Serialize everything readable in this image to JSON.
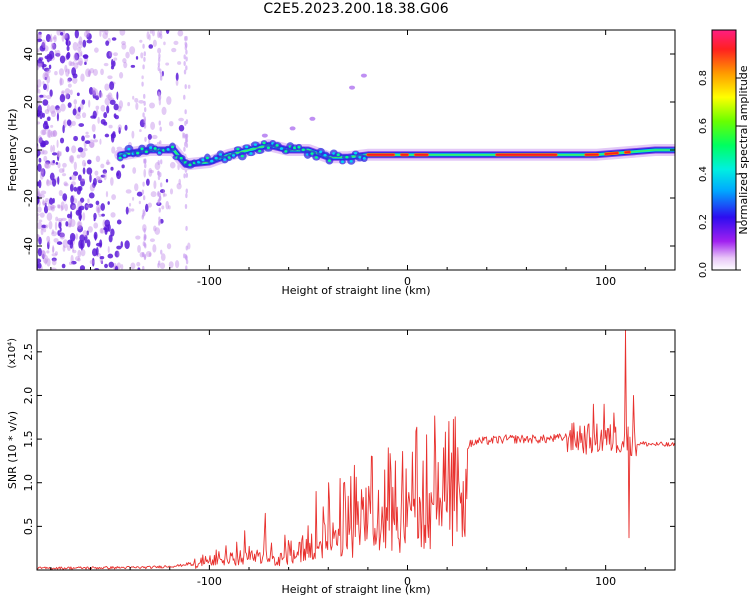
{
  "title": "C2E5.2023.200.18.38.G06",
  "chart_data": [
    {
      "type": "heatmap",
      "name": "spectrogram",
      "xlabel": "Height of straight line (km)",
      "ylabel": "Frequency (Hz)",
      "xlim": [
        -187,
        135
      ],
      "ylim": [
        -50,
        50
      ],
      "xticks": [
        {
          "v": -100,
          "label": "-100"
        },
        {
          "v": 0,
          "label": "0"
        },
        {
          "v": 100,
          "label": "100"
        }
      ],
      "yticks": [
        {
          "v": -40,
          "label": "-40"
        },
        {
          "v": -20,
          "label": "-20"
        },
        {
          "v": 0,
          "label": "0"
        },
        {
          "v": 20,
          "label": "20"
        },
        {
          "v": 40,
          "label": "40"
        }
      ],
      "colorbar": {
        "label": "Normalized spectral amplitude",
        "range": [
          0,
          1
        ],
        "ticks": [
          {
            "v": 0.0,
            "label": "0.0"
          },
          {
            "v": 0.2,
            "label": "0.2"
          },
          {
            "v": 0.4,
            "label": "0.4"
          },
          {
            "v": 0.6,
            "label": "0.6"
          },
          {
            "v": 0.8,
            "label": "0.8"
          }
        ]
      },
      "ridge": {
        "points": [
          [
            -145,
            -2
          ],
          [
            -130,
            0
          ],
          [
            -118,
            0
          ],
          [
            -112,
            -6
          ],
          [
            -100,
            -5
          ],
          [
            -90,
            -2
          ],
          [
            -80,
            0
          ],
          [
            -70,
            2
          ],
          [
            -60,
            0
          ],
          [
            -50,
            0
          ],
          [
            -40,
            -3
          ],
          [
            -30,
            -3
          ],
          [
            -20,
            -2
          ],
          [
            -10,
            -2
          ],
          [
            0,
            -2
          ],
          [
            20,
            -2
          ],
          [
            40,
            -2
          ],
          [
            60,
            -2
          ],
          [
            80,
            -2
          ],
          [
            95,
            -2
          ],
          [
            110,
            -1
          ],
          [
            125,
            0
          ],
          [
            135,
            0
          ]
        ],
        "max_segments": [
          [
            -20,
            -7
          ],
          [
            -3,
            0
          ],
          [
            4,
            10
          ],
          [
            45,
            75
          ],
          [
            90,
            96
          ],
          [
            100,
            106
          ],
          [
            110,
            112
          ]
        ]
      },
      "noise_x_range": [
        -187,
        -110
      ]
    },
    {
      "type": "line",
      "name": "snr",
      "xlabel": "Height of straight line (km)",
      "ylabel": "SNR (10 * v/v)",
      "multiplier": "(x10⁴)",
      "xlim": [
        -187,
        135
      ],
      "ylim": [
        0.0,
        2.75
      ],
      "xticks": [
        {
          "v": -100,
          "label": "-100"
        },
        {
          "v": 0,
          "label": "0"
        },
        {
          "v": 100,
          "label": "100"
        }
      ],
      "yticks": [
        {
          "v": 0.5,
          "label": "0.5"
        },
        {
          "v": 1.0,
          "label": "1.0"
        },
        {
          "v": 1.5,
          "label": "1.5"
        },
        {
          "v": 2.0,
          "label": "2.0"
        },
        {
          "v": 2.5,
          "label": "2.5"
        }
      ],
      "color": "#e8312e",
      "envelope": [
        [
          -187,
          0.02
        ],
        [
          -130,
          0.03
        ],
        [
          -115,
          0.05
        ],
        [
          -105,
          0.1
        ],
        [
          -95,
          0.18
        ],
        [
          -85,
          0.22
        ],
        [
          -75,
          0.3
        ],
        [
          -65,
          0.22
        ],
        [
          -55,
          0.28
        ],
        [
          -45,
          0.45
        ],
        [
          -35,
          0.62
        ],
        [
          -25,
          0.75
        ],
        [
          -15,
          0.9
        ],
        [
          -5,
          0.95
        ],
        [
          5,
          1.08
        ],
        [
          15,
          1.2
        ],
        [
          25,
          1.38
        ],
        [
          35,
          1.47
        ],
        [
          50,
          1.5
        ],
        [
          70,
          1.5
        ],
        [
          80,
          1.52
        ],
        [
          90,
          1.5
        ],
        [
          100,
          1.5
        ],
        [
          108,
          1.5
        ],
        [
          112,
          1.5
        ],
        [
          116,
          1.45
        ],
        [
          125,
          1.44
        ],
        [
          135,
          1.43
        ]
      ],
      "spikes": [
        [
          -82,
          0.45
        ],
        [
          -72,
          0.65
        ],
        [
          -62,
          0.4
        ],
        [
          -46,
          0.9
        ],
        [
          -40,
          1.0
        ],
        [
          -34,
          1.05
        ],
        [
          -27,
          1.2
        ],
        [
          -18,
          1.3
        ],
        [
          -6,
          1.25
        ],
        [
          8,
          1.25
        ],
        [
          14,
          1.35
        ],
        [
          18,
          1.4
        ],
        [
          82,
          1.6
        ],
        [
          87,
          1.65
        ],
        [
          94,
          1.9
        ],
        [
          99,
          1.9
        ],
        [
          104,
          1.8
        ],
        [
          110,
          2.75
        ],
        [
          112,
          0.37
        ],
        [
          114,
          2.0
        ]
      ]
    }
  ]
}
